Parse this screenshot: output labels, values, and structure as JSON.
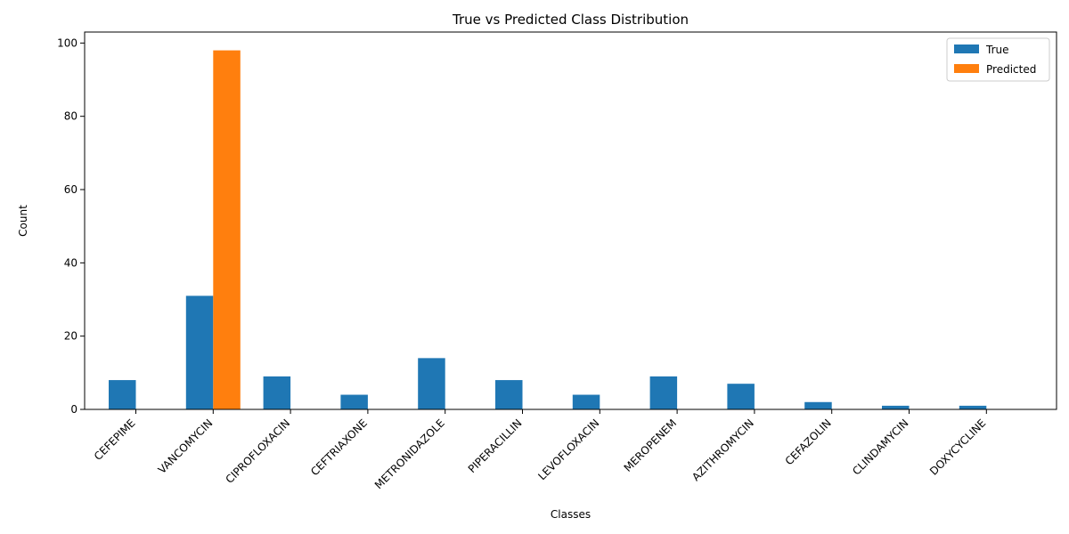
{
  "chart_data": {
    "type": "bar",
    "title": "True vs Predicted Class Distribution",
    "xlabel": "Classes",
    "ylabel": "Count",
    "ylim": [
      0,
      103
    ],
    "yticks": [
      0,
      20,
      40,
      60,
      80,
      100
    ],
    "categories": [
      "CEFEPIME",
      "VANCOMYCIN",
      "CIPROFLOXACIN",
      "CEFTRIAXONE",
      "METRONIDAZOLE",
      "PIPERACILLIN",
      "LEVOFLOXACIN",
      "MEROPENEM",
      "AZITHROMYCIN",
      "CEFAZOLIN",
      "CLINDAMYCIN",
      "DOXYCYCLINE"
    ],
    "series": [
      {
        "name": "True",
        "color": "#1f77b4",
        "values": [
          8,
          31,
          9,
          4,
          14,
          8,
          4,
          9,
          7,
          2,
          1,
          1
        ]
      },
      {
        "name": "Predicted",
        "color": "#ff7f0e",
        "values": [
          0,
          98,
          0,
          0,
          0,
          0,
          0,
          0,
          0,
          0,
          0,
          0
        ]
      }
    ],
    "legend_position": "top-right",
    "grid": false
  }
}
